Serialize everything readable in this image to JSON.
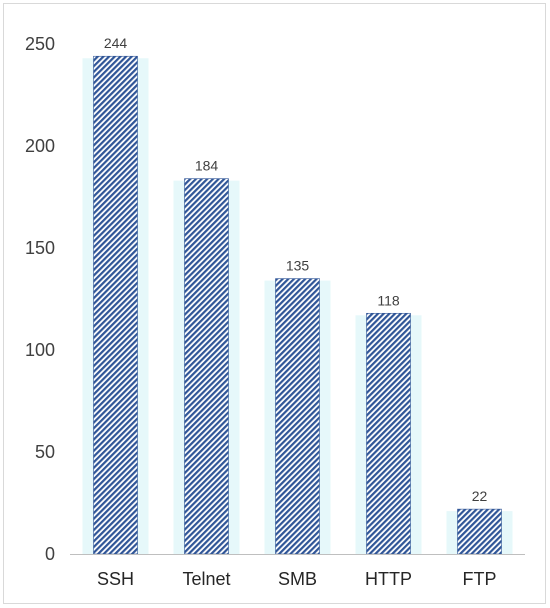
{
  "chart_data": {
    "type": "bar",
    "title": "",
    "xlabel": "",
    "ylabel": "",
    "categories": [
      "SSH",
      "Telnet",
      "SMB",
      "HTTP",
      "FTP"
    ],
    "values": [
      244,
      184,
      135,
      118,
      22
    ],
    "data_labels": [
      "244",
      "184",
      "135",
      "118",
      "22"
    ],
    "y_ticks": [
      "0",
      "50",
      "100",
      "150",
      "200",
      "250"
    ],
    "ylim": [
      0,
      250
    ],
    "grid": false,
    "legend": "none",
    "bar_fill": "#2F5597",
    "bar_pattern": "diagonal-hatch",
    "bar_glow": "#E6F8FA"
  }
}
